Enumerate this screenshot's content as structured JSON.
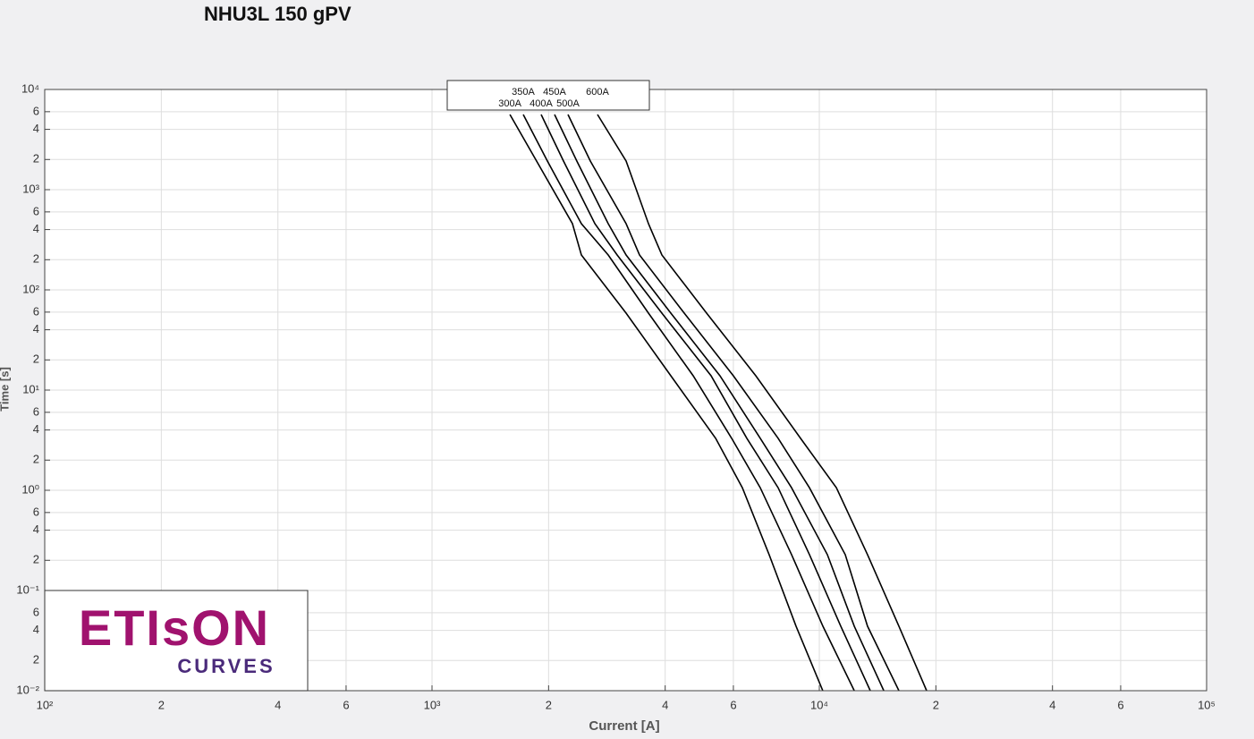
{
  "chart_data": {
    "type": "line",
    "title": "NHU3L 150 gPV",
    "xlabel": "Current [A]",
    "ylabel": "Time [s]",
    "xscale": "log",
    "yscale": "log",
    "grid": true,
    "xlim": [
      100,
      100000
    ],
    "ylim": [
      0.01,
      10000
    ],
    "xticks": [
      {
        "value": 100,
        "label": "10²"
      },
      {
        "value": 200,
        "label": "2"
      },
      {
        "value": 400,
        "label": "4"
      },
      {
        "value": 600,
        "label": "6"
      },
      {
        "value": 1000,
        "label": "10³"
      },
      {
        "value": 2000,
        "label": "2"
      },
      {
        "value": 4000,
        "label": "4"
      },
      {
        "value": 6000,
        "label": "6"
      },
      {
        "value": 10000,
        "label": "10⁴"
      },
      {
        "value": 20000,
        "label": "2"
      },
      {
        "value": 40000,
        "label": "4"
      },
      {
        "value": 60000,
        "label": "6"
      },
      {
        "value": 100000,
        "label": "10⁵"
      }
    ],
    "yticks": [
      {
        "value": 0.01,
        "label": "10⁻²"
      },
      {
        "value": 0.02,
        "label": "2"
      },
      {
        "value": 0.04,
        "label": "4"
      },
      {
        "value": 0.06,
        "label": "6"
      },
      {
        "value": 0.1,
        "label": "10⁻¹"
      },
      {
        "value": 0.2,
        "label": "2"
      },
      {
        "value": 0.4,
        "label": "4"
      },
      {
        "value": 0.6,
        "label": "6"
      },
      {
        "value": 1,
        "label": "10⁰"
      },
      2,
      4,
      6,
      {
        "value": 10,
        "label": "10¹"
      },
      {
        "value": 20,
        "label": "2"
      },
      {
        "value": 40,
        "label": "4"
      },
      {
        "value": 60,
        "label": "6"
      },
      {
        "value": 100,
        "label": "10²"
      },
      {
        "value": 200,
        "label": "2"
      },
      {
        "value": 400,
        "label": "4"
      },
      {
        "value": 600,
        "label": "6"
      },
      {
        "value": 1000,
        "label": "10³"
      },
      {
        "value": 2000,
        "label": "2"
      },
      {
        "value": 4000,
        "label": "4"
      },
      {
        "value": 6000,
        "label": "6"
      },
      {
        "value": 10000,
        "label": "10⁴"
      }
    ],
    "series": [
      {
        "name": "300A",
        "color": "#000000",
        "x": [
          1589,
          1862,
          2305,
          2430,
          3170,
          4137,
          5400,
          6330,
          7420,
          8710,
          10210
        ],
        "values": [
          5623,
          1931,
          458,
          223,
          58.6,
          13.9,
          3.3,
          1.06,
          0.228,
          0.044,
          0.01
        ]
      },
      {
        "name": "350A",
        "color": "#000000",
        "x": [
          1720,
          1986,
          2430,
          2851,
          3622,
          4724,
          5937,
          7039,
          8478,
          10215,
          12310
        ],
        "values": [
          5623,
          1931,
          458,
          223,
          58.6,
          13.9,
          3.3,
          1.06,
          0.228,
          0.044,
          0.01
        ]
      },
      {
        "name": "400A",
        "color": "#000000",
        "x": [
          1913,
          2185,
          2633,
          3006,
          3922,
          5254,
          6500,
          7830,
          9430,
          11360,
          13540
        ],
        "values": [
          5623,
          1931,
          458,
          223,
          58.6,
          13.9,
          3.3,
          1.06,
          0.228,
          0.044,
          0.01
        ]
      },
      {
        "name": "450A",
        "color": "#000000",
        "x": [
          2072,
          2366,
          2851,
          3170,
          4137,
          5540,
          7039,
          8478,
          10490,
          12310,
          14670
        ],
        "values": [
          5623,
          1931,
          458,
          223,
          58.6,
          13.9,
          3.3,
          1.06,
          0.228,
          0.044,
          0.01
        ]
      },
      {
        "name": "500A",
        "color": "#000000",
        "x": [
          2244,
          2563,
          3170,
          3434,
          4480,
          6000,
          7830,
          9430,
          11670,
          13320,
          16050
        ],
        "values": [
          5623,
          1931,
          458,
          223,
          58.6,
          13.9,
          3.3,
          1.06,
          0.228,
          0.044,
          0.01
        ]
      },
      {
        "name": "600A",
        "color": "#000000",
        "x": [
          2675,
          3170,
          3622,
          3922,
          5117,
          6855,
          8942,
          11070,
          13320,
          16050,
          18930
        ],
        "values": [
          5623,
          1931,
          458,
          223,
          58.6,
          13.9,
          3.3,
          1.06,
          0.228,
          0.044,
          0.01
        ]
      }
    ]
  },
  "logo": {
    "brand": "ETIsON",
    "sub": "CURVES"
  }
}
